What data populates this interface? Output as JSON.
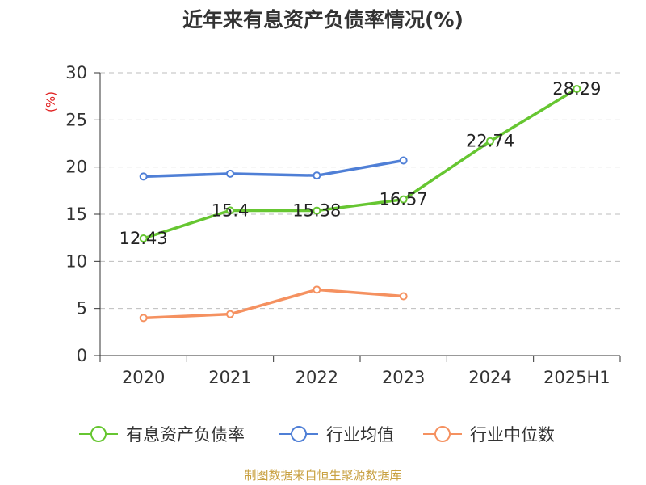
{
  "chart_data": {
    "type": "line",
    "title": "近年来有息资产负债率情况(%)",
    "ylabel": "(%)",
    "xlabel": "",
    "categories": [
      "2020",
      "2021",
      "2022",
      "2023",
      "2024",
      "2025H1"
    ],
    "ylim": [
      0,
      30
    ],
    "yticks": [
      0,
      5,
      10,
      15,
      20,
      25,
      30
    ],
    "grid": true,
    "legend_position": "bottom",
    "series": [
      {
        "name": "有息资产负债率",
        "color": "#66c631",
        "values": [
          12.43,
          15.4,
          15.38,
          16.57,
          22.74,
          28.29
        ],
        "labels": [
          "12.43",
          "15.4",
          "15.38",
          "16.57",
          "22.74",
          "28.29"
        ],
        "show_labels": true
      },
      {
        "name": "行业均值",
        "color": "#4f7fd6",
        "values": [
          19.0,
          19.3,
          19.1,
          20.7,
          null,
          null
        ],
        "show_labels": false
      },
      {
        "name": "行业中位数",
        "color": "#f59160",
        "values": [
          4.0,
          4.4,
          7.0,
          6.3,
          null,
          null
        ],
        "show_labels": false
      }
    ],
    "source": "制图数据来自恒生聚源数据库"
  }
}
